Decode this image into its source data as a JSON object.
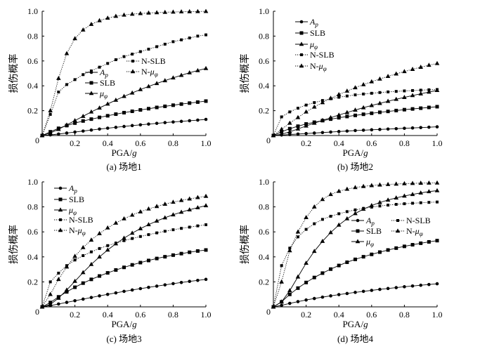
{
  "figure": {
    "background": "#ffffff",
    "ink": "#000000"
  },
  "chart_data": [
    {
      "type": "line",
      "caption": "(a) 场地1",
      "xlabel": {
        "text": "PGA/",
        "italic": "g"
      },
      "ylabel": "损伤概率",
      "origin_label": "0",
      "xlim": [
        0,
        1.0
      ],
      "ylim": [
        0,
        1.0
      ],
      "xticks": [
        {
          "value": 0.2,
          "label": "0.2"
        },
        {
          "value": 0.4,
          "label": "0.4"
        },
        {
          "value": 0.6,
          "label": "0.6"
        },
        {
          "value": 0.8,
          "label": "0.8"
        },
        {
          "value": 1.0,
          "label": "1.0"
        }
      ],
      "yticks": [
        {
          "value": 0.2,
          "label": "0.2"
        },
        {
          "value": 0.4,
          "label": "0.4"
        },
        {
          "value": 0.6,
          "label": "0.6"
        },
        {
          "value": 0.8,
          "label": "0.8"
        },
        {
          "value": 1.0,
          "label": "1.0"
        }
      ],
      "x": [
        0,
        0.05,
        0.1,
        0.15,
        0.2,
        0.25,
        0.3,
        0.35,
        0.4,
        0.45,
        0.5,
        0.55,
        0.6,
        0.65,
        0.7,
        0.75,
        0.8,
        0.85,
        0.9,
        0.95,
        1.0
      ],
      "series": [
        {
          "label": {
            "symbol": "A",
            "sub": "p"
          },
          "values": [
            0,
            0.005,
            0.012,
            0.02,
            0.028,
            0.036,
            0.044,
            0.052,
            0.059,
            0.066,
            0.073,
            0.08,
            0.086,
            0.092,
            0.098,
            0.104,
            0.109,
            0.114,
            0.119,
            0.124,
            0.13
          ]
        },
        {
          "label": {
            "text": "SLB"
          },
          "values": [
            0,
            0.03,
            0.058,
            0.08,
            0.1,
            0.117,
            0.132,
            0.146,
            0.159,
            0.172,
            0.184,
            0.195,
            0.206,
            0.216,
            0.226,
            0.235,
            0.244,
            0.253,
            0.261,
            0.269,
            0.277
          ]
        },
        {
          "label": {
            "symbol": "μ",
            "sub": "φ"
          },
          "values": [
            0,
            0.02,
            0.05,
            0.085,
            0.12,
            0.155,
            0.19,
            0.222,
            0.254,
            0.285,
            0.315,
            0.343,
            0.37,
            0.395,
            0.419,
            0.442,
            0.464,
            0.485,
            0.505,
            0.523,
            0.54
          ]
        },
        {
          "label": {
            "text": "N-SLB"
          },
          "values": [
            0,
            0.17,
            0.35,
            0.41,
            0.45,
            0.49,
            0.52,
            0.55,
            0.58,
            0.61,
            0.635,
            0.655,
            0.675,
            0.695,
            0.715,
            0.735,
            0.755,
            0.77,
            0.785,
            0.8,
            0.81
          ]
        },
        {
          "label": {
            "prefix": "N-",
            "symbol": "μ",
            "sub": "φ"
          },
          "values": [
            0,
            0.2,
            0.46,
            0.66,
            0.78,
            0.85,
            0.895,
            0.925,
            0.945,
            0.96,
            0.97,
            0.977,
            0.982,
            0.986,
            0.989,
            0.992,
            0.994,
            0.996,
            0.997,
            0.998,
            0.999
          ]
        }
      ]
    },
    {
      "type": "line",
      "caption": "(b) 场地2",
      "xlabel": {
        "text": "PGA/",
        "italic": "g"
      },
      "ylabel": "损伤概率",
      "origin_label": "0",
      "xlim": [
        0,
        1.0
      ],
      "ylim": [
        0,
        1.0
      ],
      "xticks": [
        {
          "value": 0.2,
          "label": "0.2"
        },
        {
          "value": 0.4,
          "label": "0.4"
        },
        {
          "value": 0.6,
          "label": "0.6"
        },
        {
          "value": 0.8,
          "label": "0.8"
        },
        {
          "value": 1.0,
          "label": "1.0"
        }
      ],
      "yticks": [
        {
          "value": 0.2,
          "label": "0.2"
        },
        {
          "value": 0.4,
          "label": "0.4"
        },
        {
          "value": 0.6,
          "label": "0.6"
        },
        {
          "value": 0.8,
          "label": "0.8"
        },
        {
          "value": 1.0,
          "label": "1.0"
        }
      ],
      "x": [
        0,
        0.05,
        0.1,
        0.15,
        0.2,
        0.25,
        0.3,
        0.35,
        0.4,
        0.45,
        0.5,
        0.55,
        0.6,
        0.65,
        0.7,
        0.75,
        0.8,
        0.85,
        0.9,
        0.95,
        1.0
      ],
      "series": [
        {
          "label": {
            "symbol": "A",
            "sub": "p"
          },
          "values": [
            0,
            0.004,
            0.008,
            0.012,
            0.016,
            0.02,
            0.024,
            0.028,
            0.032,
            0.036,
            0.04,
            0.043,
            0.046,
            0.049,
            0.052,
            0.055,
            0.058,
            0.061,
            0.064,
            0.067,
            0.07
          ]
        },
        {
          "label": {
            "text": "SLB"
          },
          "values": [
            0,
            0.03,
            0.055,
            0.075,
            0.093,
            0.107,
            0.12,
            0.132,
            0.143,
            0.153,
            0.162,
            0.171,
            0.179,
            0.187,
            0.194,
            0.201,
            0.208,
            0.214,
            0.22,
            0.226,
            0.232
          ]
        },
        {
          "label": {
            "symbol": "μ",
            "sub": "φ"
          },
          "values": [
            0,
            0.01,
            0.03,
            0.053,
            0.077,
            0.1,
            0.122,
            0.144,
            0.165,
            0.185,
            0.205,
            0.224,
            0.242,
            0.259,
            0.276,
            0.292,
            0.307,
            0.322,
            0.336,
            0.35,
            0.363
          ]
        },
        {
          "label": {
            "text": "N-SLB"
          },
          "values": [
            0,
            0.15,
            0.19,
            0.22,
            0.245,
            0.265,
            0.282,
            0.296,
            0.308,
            0.318,
            0.327,
            0.334,
            0.34,
            0.346,
            0.351,
            0.355,
            0.359,
            0.362,
            0.365,
            0.368,
            0.37
          ]
        },
        {
          "label": {
            "prefix": "N-",
            "symbol": "μ",
            "sub": "φ"
          },
          "values": [
            0,
            0.05,
            0.1,
            0.145,
            0.19,
            0.23,
            0.265,
            0.3,
            0.33,
            0.358,
            0.385,
            0.41,
            0.433,
            0.455,
            0.476,
            0.496,
            0.515,
            0.533,
            0.55,
            0.566,
            0.58
          ]
        }
      ]
    },
    {
      "type": "line",
      "caption": "(c) 场地3",
      "xlabel": {
        "text": "PGA/",
        "italic": "g"
      },
      "ylabel": "损伤概率",
      "origin_label": "0",
      "xlim": [
        0,
        1.0
      ],
      "ylim": [
        0,
        1.0
      ],
      "xticks": [
        {
          "value": 0.2,
          "label": "0.2"
        },
        {
          "value": 0.4,
          "label": "0.4"
        },
        {
          "value": 0.6,
          "label": "0.6"
        },
        {
          "value": 0.8,
          "label": "0.8"
        },
        {
          "value": 1.0,
          "label": "1.0"
        }
      ],
      "yticks": [
        {
          "value": 0.2,
          "label": "0.2"
        },
        {
          "value": 0.4,
          "label": "0.4"
        },
        {
          "value": 0.6,
          "label": "0.6"
        },
        {
          "value": 0.8,
          "label": "0.8"
        },
        {
          "value": 1.0,
          "label": "1.0"
        }
      ],
      "x": [
        0,
        0.05,
        0.1,
        0.15,
        0.2,
        0.25,
        0.3,
        0.35,
        0.4,
        0.45,
        0.5,
        0.55,
        0.6,
        0.65,
        0.7,
        0.75,
        0.8,
        0.85,
        0.9,
        0.95,
        1.0
      ],
      "series": [
        {
          "label": {
            "symbol": "A",
            "sub": "p"
          },
          "values": [
            0,
            0.01,
            0.023,
            0.036,
            0.049,
            0.062,
            0.075,
            0.088,
            0.1,
            0.112,
            0.124,
            0.135,
            0.146,
            0.156,
            0.166,
            0.176,
            0.186,
            0.195,
            0.204,
            0.212,
            0.22
          ]
        },
        {
          "label": {
            "text": "SLB"
          },
          "values": [
            0,
            0.035,
            0.08,
            0.12,
            0.157,
            0.19,
            0.22,
            0.247,
            0.272,
            0.295,
            0.316,
            0.336,
            0.354,
            0.371,
            0.387,
            0.401,
            0.414,
            0.426,
            0.437,
            0.447,
            0.455
          ]
        },
        {
          "label": {
            "symbol": "μ",
            "sub": "φ"
          },
          "values": [
            0,
            0.02,
            0.07,
            0.135,
            0.205,
            0.275,
            0.34,
            0.4,
            0.455,
            0.505,
            0.55,
            0.59,
            0.626,
            0.658,
            0.687,
            0.713,
            0.737,
            0.758,
            0.777,
            0.794,
            0.81
          ]
        },
        {
          "label": {
            "text": "N-SLB"
          },
          "values": [
            0,
            0.2,
            0.27,
            0.33,
            0.375,
            0.41,
            0.44,
            0.467,
            0.49,
            0.51,
            0.53,
            0.547,
            0.563,
            0.578,
            0.592,
            0.605,
            0.617,
            0.628,
            0.638,
            0.648,
            0.657
          ]
        },
        {
          "label": {
            "prefix": "N-",
            "symbol": "μ",
            "sub": "φ"
          },
          "values": [
            0,
            0.1,
            0.22,
            0.32,
            0.405,
            0.475,
            0.535,
            0.587,
            0.632,
            0.671,
            0.705,
            0.735,
            0.761,
            0.784,
            0.804,
            0.822,
            0.838,
            0.852,
            0.864,
            0.875,
            0.885
          ]
        }
      ]
    },
    {
      "type": "line",
      "caption": "(d) 场地4",
      "xlabel": {
        "text": "PGA/",
        "italic": "g"
      },
      "ylabel": "损伤概率",
      "origin_label": "0",
      "xlim": [
        0,
        1.0
      ],
      "ylim": [
        0,
        1.0
      ],
      "xticks": [
        {
          "value": 0.2,
          "label": "0.2"
        },
        {
          "value": 0.4,
          "label": "0.4"
        },
        {
          "value": 0.6,
          "label": "0.6"
        },
        {
          "value": 0.8,
          "label": "0.8"
        },
        {
          "value": 1.0,
          "label": "1.0"
        }
      ],
      "yticks": [
        {
          "value": 0.2,
          "label": "0.2"
        },
        {
          "value": 0.4,
          "label": "0.4"
        },
        {
          "value": 0.6,
          "label": "0.6"
        },
        {
          "value": 0.8,
          "label": "0.8"
        },
        {
          "value": 1.0,
          "label": "1.0"
        }
      ],
      "x": [
        0,
        0.05,
        0.1,
        0.15,
        0.2,
        0.25,
        0.3,
        0.35,
        0.4,
        0.45,
        0.5,
        0.55,
        0.6,
        0.65,
        0.7,
        0.75,
        0.8,
        0.85,
        0.9,
        0.95,
        1.0
      ],
      "series": [
        {
          "label": {
            "symbol": "A",
            "sub": "p"
          },
          "values": [
            0,
            0.012,
            0.028,
            0.042,
            0.055,
            0.067,
            0.078,
            0.088,
            0.098,
            0.107,
            0.116,
            0.124,
            0.132,
            0.14,
            0.147,
            0.154,
            0.161,
            0.167,
            0.173,
            0.179,
            0.185
          ]
        },
        {
          "label": {
            "text": "SLB"
          },
          "values": [
            0,
            0.04,
            0.1,
            0.15,
            0.195,
            0.235,
            0.27,
            0.302,
            0.331,
            0.357,
            0.38,
            0.401,
            0.42,
            0.438,
            0.455,
            0.47,
            0.484,
            0.497,
            0.509,
            0.52,
            0.53
          ]
        },
        {
          "label": {
            "symbol": "μ",
            "sub": "φ"
          },
          "values": [
            0,
            0.04,
            0.13,
            0.24,
            0.35,
            0.445,
            0.525,
            0.595,
            0.655,
            0.705,
            0.747,
            0.782,
            0.811,
            0.835,
            0.855,
            0.872,
            0.887,
            0.9,
            0.912,
            0.922,
            0.93
          ]
        },
        {
          "label": {
            "text": "N-SLB"
          },
          "values": [
            0,
            0.33,
            0.47,
            0.56,
            0.62,
            0.665,
            0.7,
            0.725,
            0.745,
            0.762,
            0.776,
            0.788,
            0.798,
            0.807,
            0.814,
            0.82,
            0.825,
            0.829,
            0.833,
            0.836,
            0.839
          ]
        },
        {
          "label": {
            "prefix": "N-",
            "symbol": "μ",
            "sub": "φ"
          },
          "values": [
            0,
            0.2,
            0.45,
            0.6,
            0.715,
            0.8,
            0.86,
            0.9,
            0.925,
            0.942,
            0.955,
            0.964,
            0.971,
            0.976,
            0.98,
            0.983,
            0.986,
            0.988,
            0.99,
            0.991,
            0.992
          ]
        }
      ]
    }
  ]
}
